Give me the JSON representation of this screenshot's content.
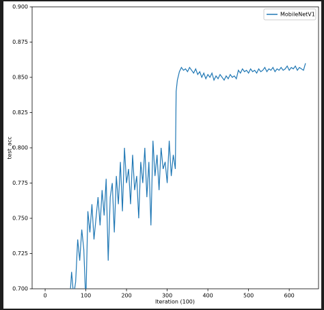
{
  "chart_data": {
    "type": "line",
    "xlabel": "Iteration (100)",
    "ylabel": "test_acc",
    "xlim": [
      -32,
      672
    ],
    "ylim": [
      0.7,
      0.9
    ],
    "xticks": [
      0,
      100,
      200,
      300,
      400,
      500,
      600
    ],
    "yticks": [
      {
        "value": 0.7,
        "label": "0.700"
      },
      {
        "value": 0.725,
        "label": "0.725"
      },
      {
        "value": 0.75,
        "label": "0.750"
      },
      {
        "value": 0.775,
        "label": "0.775"
      },
      {
        "value": 0.8,
        "label": "0.800"
      },
      {
        "value": 0.825,
        "label": "0.825"
      },
      {
        "value": 0.85,
        "label": "0.850"
      },
      {
        "value": 0.875,
        "label": "0.875"
      },
      {
        "value": 0.9,
        "label": "0.900"
      }
    ],
    "legend": "upper right",
    "x": [
      60,
      65,
      70,
      75,
      80,
      85,
      90,
      95,
      100,
      105,
      110,
      115,
      120,
      125,
      130,
      135,
      140,
      145,
      150,
      155,
      160,
      165,
      170,
      175,
      180,
      185,
      190,
      195,
      200,
      205,
      210,
      215,
      220,
      225,
      230,
      235,
      240,
      245,
      250,
      255,
      260,
      265,
      270,
      275,
      280,
      285,
      290,
      295,
      300,
      305,
      310,
      315,
      320,
      322,
      325,
      330,
      335,
      340,
      345,
      350,
      355,
      360,
      365,
      370,
      375,
      380,
      385,
      390,
      395,
      400,
      405,
      410,
      415,
      420,
      425,
      430,
      435,
      440,
      445,
      450,
      455,
      460,
      465,
      470,
      475,
      480,
      485,
      490,
      495,
      500,
      505,
      510,
      515,
      520,
      525,
      530,
      535,
      540,
      545,
      550,
      555,
      560,
      565,
      570,
      575,
      580,
      585,
      590,
      595,
      600,
      605,
      610,
      615,
      620,
      625,
      630,
      635,
      640
    ],
    "series": [
      {
        "name": "MobileNetV1",
        "color": "#1f77b4",
        "values": [
          0.69,
          0.712,
          0.695,
          0.705,
          0.735,
          0.72,
          0.742,
          0.728,
          0.69,
          0.755,
          0.74,
          0.76,
          0.735,
          0.75,
          0.765,
          0.745,
          0.77,
          0.752,
          0.778,
          0.72,
          0.765,
          0.775,
          0.74,
          0.78,
          0.76,
          0.79,
          0.755,
          0.8,
          0.775,
          0.785,
          0.76,
          0.795,
          0.77,
          0.78,
          0.75,
          0.79,
          0.775,
          0.8,
          0.765,
          0.79,
          0.745,
          0.805,
          0.78,
          0.795,
          0.77,
          0.8,
          0.785,
          0.79,
          0.775,
          0.805,
          0.78,
          0.795,
          0.785,
          0.84,
          0.848,
          0.854,
          0.857,
          0.855,
          0.856,
          0.854,
          0.857,
          0.855,
          0.853,
          0.856,
          0.852,
          0.854,
          0.85,
          0.853,
          0.849,
          0.852,
          0.85,
          0.853,
          0.848,
          0.851,
          0.849,
          0.852,
          0.85,
          0.848,
          0.851,
          0.849,
          0.852,
          0.85,
          0.851,
          0.849,
          0.855,
          0.853,
          0.856,
          0.854,
          0.855,
          0.853,
          0.856,
          0.854,
          0.855,
          0.853,
          0.856,
          0.854,
          0.855,
          0.857,
          0.854,
          0.856,
          0.855,
          0.857,
          0.854,
          0.856,
          0.855,
          0.857,
          0.855,
          0.856,
          0.858,
          0.855,
          0.857,
          0.856,
          0.858,
          0.855,
          0.857,
          0.856,
          0.855,
          0.86
        ]
      }
    ]
  }
}
